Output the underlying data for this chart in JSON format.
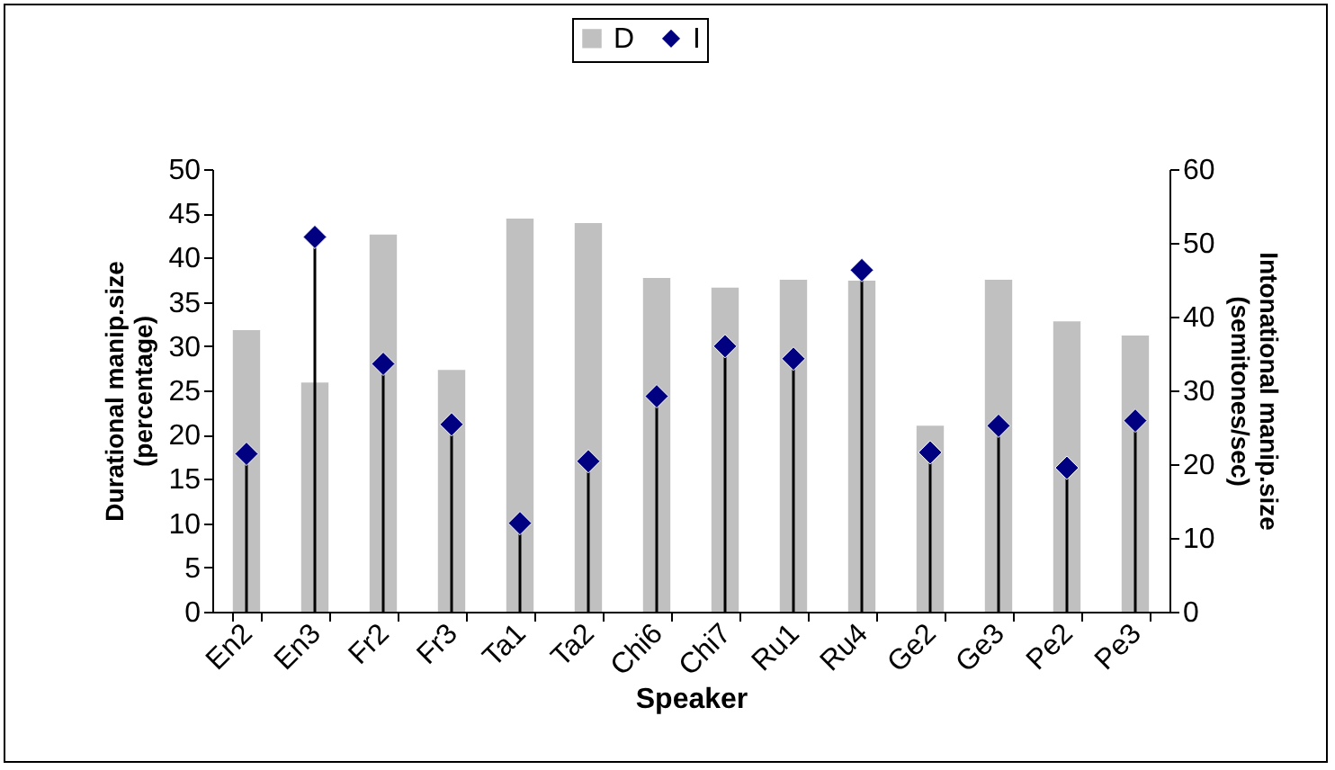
{
  "chart_data": {
    "type": "bar",
    "xlabel": "Speaker",
    "ylabel": "Durational manip.size\n(percentage)",
    "y2label": "Intonational manip.size\n(semitones/sec)",
    "categories": [
      "En2",
      "En3",
      "Fr2",
      "Fr3",
      "Ta1",
      "Ta2",
      "Chi6",
      "Chi7",
      "Ru1",
      "Ru4",
      "Ge2",
      "Ge3",
      "Pe2",
      "Pe3"
    ],
    "series": [
      {
        "name": "D",
        "color": "#c0c0c0",
        "values": [
          31.8,
          25.9,
          42.6,
          27.3,
          44.4,
          43.9,
          37.7,
          36.6,
          37.5,
          37.4,
          21.0,
          37.5,
          32.8,
          31.2
        ]
      },
      {
        "name": "I",
        "type": "lollipop",
        "axis": "y2",
        "color": "#000080",
        "marker": "diamond",
        "values": [
          21.4,
          50.8,
          33.6,
          25.4,
          12.0,
          20.4,
          29.2,
          36.0,
          34.3,
          46.3,
          21.6,
          25.2,
          19.5,
          25.9
        ]
      }
    ],
    "ylim": [
      0,
      50
    ],
    "yticks": [
      0,
      5,
      10,
      15,
      20,
      25,
      30,
      35,
      40,
      45,
      50
    ],
    "y2lim": [
      0,
      60
    ],
    "y2ticks": [
      0,
      10,
      20,
      30,
      40,
      50,
      60
    ],
    "grid": false,
    "legend": "top"
  }
}
